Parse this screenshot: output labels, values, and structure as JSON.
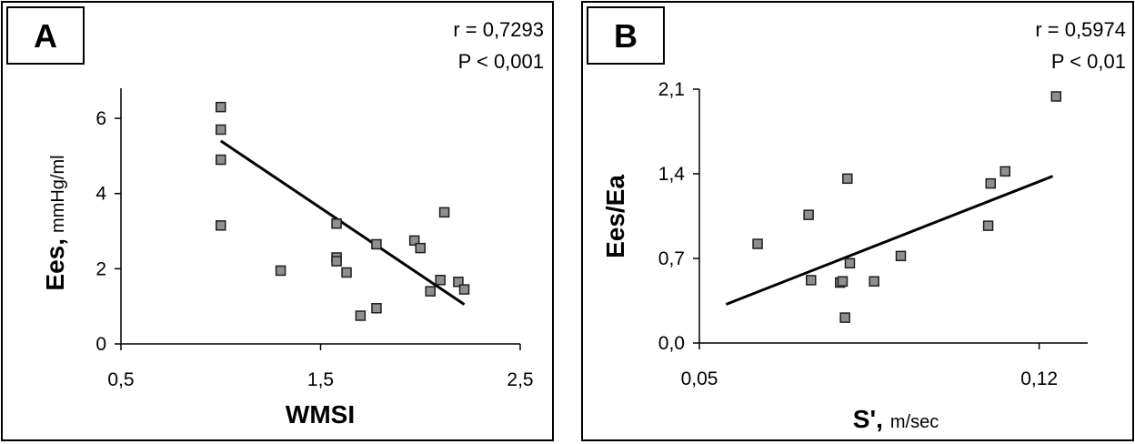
{
  "chart_data": [
    {
      "type": "scatter",
      "panel_label": "A",
      "stats": [
        "r = 0,7293",
        "P < 0,001"
      ],
      "xlabel": "WMSI",
      "xlabel_unit": "",
      "ylabel": "Ees,",
      "ylabel_unit": "mmHg/ml",
      "xlim": [
        0.5,
        2.5
      ],
      "ylim": [
        0,
        6.8
      ],
      "xticks": [
        0.5,
        1.5,
        2.5
      ],
      "xtick_labels": [
        "0,5",
        "1,5",
        "2,5"
      ],
      "yticks": [
        0,
        2,
        4,
        6
      ],
      "ytick_labels": [
        "0",
        "2",
        "4",
        "6"
      ],
      "points": [
        [
          1.0,
          6.3
        ],
        [
          1.0,
          5.7
        ],
        [
          1.0,
          4.9
        ],
        [
          1.0,
          3.15
        ],
        [
          1.3,
          1.95
        ],
        [
          1.58,
          3.2
        ],
        [
          1.58,
          2.3
        ],
        [
          1.58,
          2.2
        ],
        [
          1.63,
          1.9
        ],
        [
          1.7,
          0.75
        ],
        [
          1.78,
          2.65
        ],
        [
          1.78,
          0.95
        ],
        [
          1.97,
          2.75
        ],
        [
          2.0,
          2.55
        ],
        [
          2.05,
          1.4
        ],
        [
          2.1,
          1.7
        ],
        [
          2.12,
          3.5
        ],
        [
          2.19,
          1.65
        ],
        [
          2.22,
          1.45
        ]
      ],
      "fit": [
        [
          1.0,
          5.4
        ],
        [
          2.22,
          1.05
        ]
      ],
      "colors": {
        "point_fill": "#8f8f8f",
        "point_stroke": "#1e1e1e",
        "line": "#000000"
      },
      "grid": false,
      "legend": "none"
    },
    {
      "type": "scatter",
      "panel_label": "B",
      "stats": [
        "r = 0,5974",
        "P < 0,01"
      ],
      "xlabel": "S',",
      "xlabel_unit": "m/sec",
      "ylabel": "Ees/Ea",
      "ylabel_unit": "",
      "xlim": [
        0.05,
        0.13
      ],
      "ylim": [
        0,
        2.1
      ],
      "xticks": [
        0.05,
        0.12
      ],
      "xtick_labels": [
        "0,05",
        "0,12"
      ],
      "yticks": [
        0,
        0.7,
        1.4,
        2.1
      ],
      "ytick_labels": [
        "0,0",
        "0,7",
        "1,4",
        "2,1"
      ],
      "points": [
        [
          0.062,
          0.82
        ],
        [
          0.0725,
          1.06
        ],
        [
          0.073,
          0.52
        ],
        [
          0.079,
          0.5
        ],
        [
          0.0795,
          0.51
        ],
        [
          0.08,
          0.21
        ],
        [
          0.0805,
          1.36
        ],
        [
          0.081,
          0.66
        ],
        [
          0.086,
          0.51
        ],
        [
          0.0915,
          0.72
        ],
        [
          0.1095,
          0.97
        ],
        [
          0.11,
          1.32
        ],
        [
          0.113,
          1.42
        ],
        [
          0.1235,
          2.04
        ]
      ],
      "fit": [
        [
          0.0555,
          0.32
        ],
        [
          0.1228,
          1.38
        ]
      ],
      "colors": {
        "point_fill": "#8f8f8f",
        "point_stroke": "#1e1e1e",
        "line": "#000000"
      },
      "grid": false,
      "legend": "none"
    }
  ]
}
